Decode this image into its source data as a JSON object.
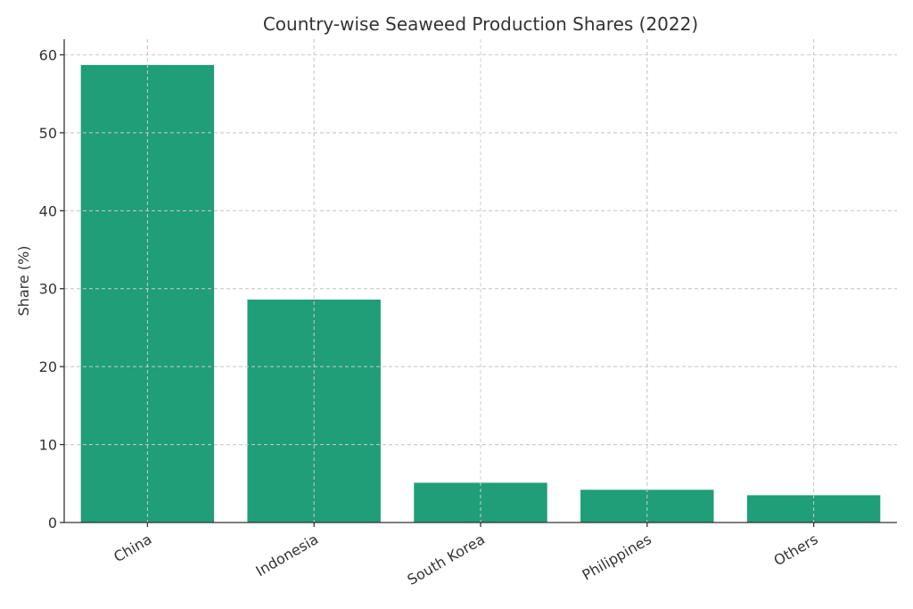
{
  "chart_data": {
    "type": "bar",
    "title": "Country-wise Seaweed Production Shares (2022)",
    "xlabel": "",
    "ylabel": "Share (%)",
    "categories": [
      "China",
      "Indonesia",
      "South Korea",
      "Philippines",
      "Others"
    ],
    "values": [
      58.7,
      28.6,
      5.1,
      4.2,
      3.5
    ],
    "ylim": [
      0,
      62
    ],
    "yticks": [
      0,
      10,
      20,
      30,
      40,
      50,
      60
    ],
    "grid": true,
    "bar_color": "#1f9e78",
    "x_tick_rotation_deg": -30
  }
}
